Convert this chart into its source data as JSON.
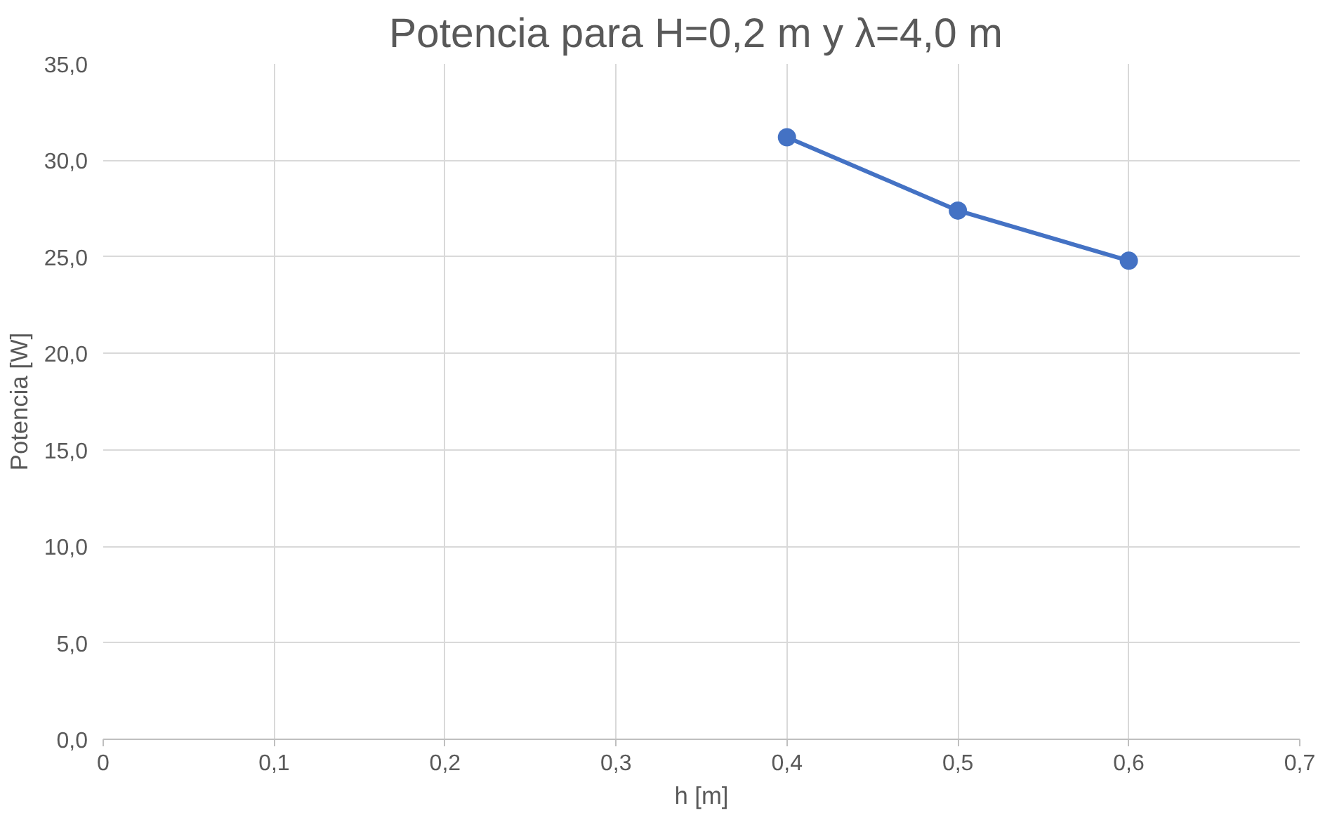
{
  "chart_data": {
    "type": "line",
    "title": "Potencia para H=0,2 m y  λ=4,0 m",
    "xlabel": "h [m]",
    "ylabel": "Potencia [W]",
    "x": [
      0.4,
      0.5,
      0.6
    ],
    "series": [
      {
        "color": "#4472c4",
        "values": [
          31.2,
          27.4,
          24.8
        ]
      }
    ],
    "xlim": [
      0,
      0.7
    ],
    "ylim": [
      0,
      35
    ],
    "xticks": [
      0,
      {
        "value": 0.1,
        "label": "0,1"
      },
      {
        "value": 0.2,
        "label": "0,2"
      },
      {
        "value": 0.3,
        "label": "0,3"
      },
      {
        "value": 0.4,
        "label": "0,4"
      },
      {
        "value": 0.5,
        "label": "0,5"
      },
      {
        "value": 0.6,
        "label": "0,6"
      },
      {
        "value": 0.7,
        "label": "0,7"
      }
    ],
    "yticks": [
      {
        "value": 0,
        "label": "0,0"
      },
      {
        "value": 5,
        "label": "5,0"
      },
      {
        "value": 10,
        "label": "10,0"
      },
      {
        "value": 15,
        "label": "15,0"
      },
      {
        "value": 20,
        "label": "20,0"
      },
      {
        "value": 25,
        "label": "25,0"
      },
      {
        "value": 30,
        "label": "30,0"
      },
      {
        "value": 35,
        "label": "35,0"
      }
    ],
    "grid": true,
    "marker": "circle",
    "line_style": "solid"
  }
}
